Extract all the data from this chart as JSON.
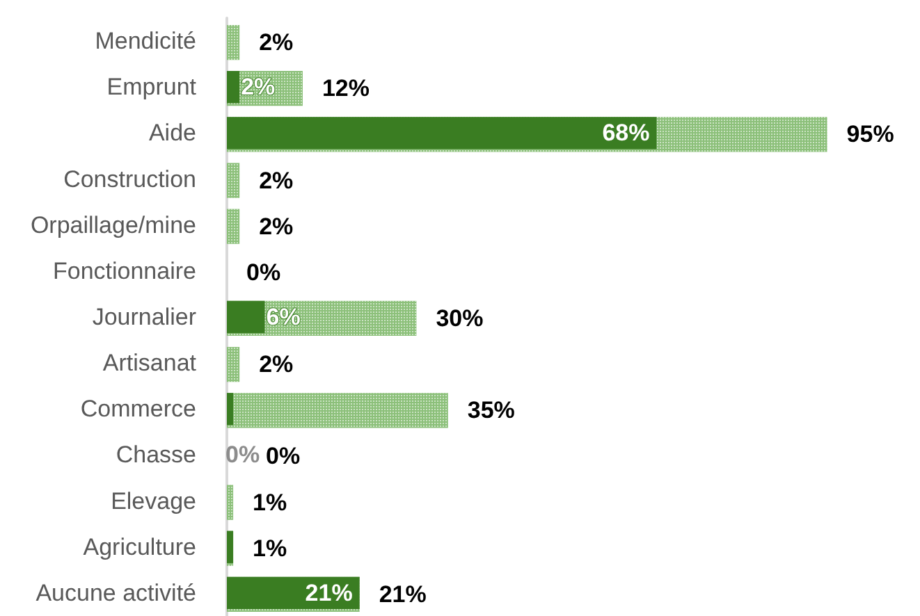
{
  "chart_data": {
    "type": "bar",
    "orientation": "horizontal",
    "categories": [
      "Mendicité",
      "Emprunt",
      "Aide",
      "Construction",
      "Orpaillage/mine",
      "Fonctionnaire",
      "Journalier",
      "Artisanat",
      "Commerce",
      "Chasse",
      "Elevage",
      "Agriculture",
      "Aucune activité"
    ],
    "tick_labels": "y",
    "series": [
      {
        "color": "#8cc07a",
        "values": [
          2,
          12,
          95,
          2,
          2,
          0,
          30,
          2,
          35,
          0,
          1,
          1,
          21
        ],
        "value_labels": [
          "2%",
          "12%",
          "95%",
          "2%",
          "2%",
          "0%",
          "30%",
          "2%",
          "35%",
          "0%",
          "1%",
          "1%",
          "21%"
        ]
      },
      {
        "color": "#3a7d22",
        "values": [
          0,
          2,
          68,
          0,
          0,
          0,
          6,
          0,
          1,
          0,
          0,
          1,
          21
        ],
        "value_labels": [
          null,
          "2%",
          "68%",
          null,
          null,
          null,
          "6%",
          null,
          null,
          "0%",
          null,
          null,
          "21%"
        ]
      }
    ]
  }
}
